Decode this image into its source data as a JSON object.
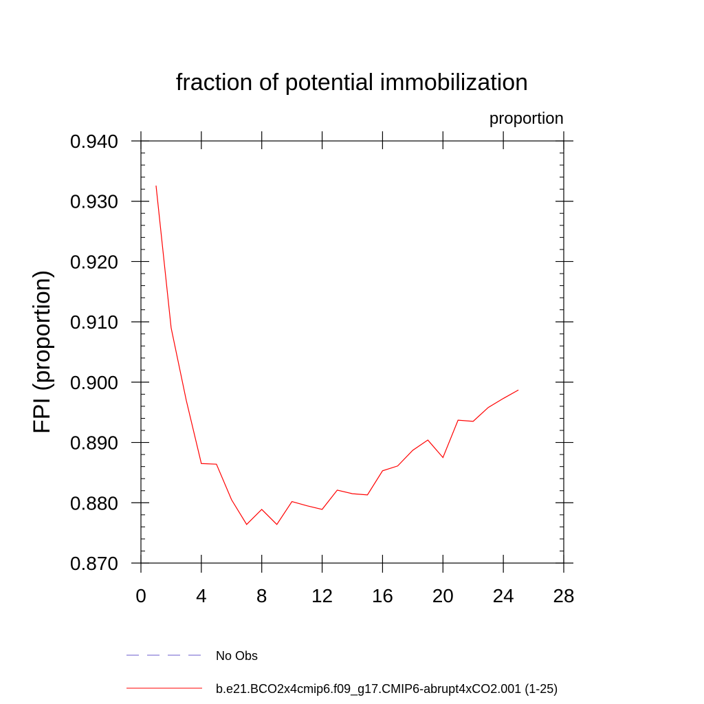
{
  "chart_data": {
    "type": "line",
    "title": "fraction of potential immobilization",
    "units_label": "proportion",
    "xlabel": "",
    "ylabel": "FPI  (proportion)",
    "xlim": [
      0,
      28
    ],
    "ylim": [
      0.87,
      0.94
    ],
    "x_ticks": [
      0,
      4,
      8,
      12,
      16,
      20,
      24,
      28
    ],
    "x_tick_labels": [
      "0",
      "4",
      "8",
      "12",
      "16",
      "20",
      "24",
      "28"
    ],
    "y_ticks": [
      0.87,
      0.88,
      0.89,
      0.9,
      0.91,
      0.92,
      0.93,
      0.94
    ],
    "y_tick_labels": [
      "0.870",
      "0.880",
      "0.890",
      "0.900",
      "0.910",
      "0.920",
      "0.930",
      "0.940"
    ],
    "grid": false,
    "legend_position": "bottom",
    "series": [
      {
        "name": "No Obs",
        "color": "#6a5acd",
        "dashed": true,
        "x": [],
        "values": []
      },
      {
        "name": "b.e21.BCO2x4cmip6.f09_g17.CMIP6-abrupt4xCO2.001 (1-25)",
        "color": "#ff0000",
        "dashed": false,
        "x": [
          1,
          2,
          3,
          4,
          5,
          6,
          7,
          8,
          9,
          10,
          11,
          12,
          13,
          14,
          15,
          16,
          17,
          18,
          19,
          20,
          21,
          22,
          23,
          24,
          25
        ],
        "values": [
          0.9326,
          0.909,
          0.897,
          0.8865,
          0.8864,
          0.8805,
          0.8764,
          0.8789,
          0.8764,
          0.8802,
          0.8795,
          0.8789,
          0.8821,
          0.8815,
          0.8813,
          0.8853,
          0.8861,
          0.8887,
          0.8904,
          0.8875,
          0.8937,
          0.8935,
          0.8958,
          0.8973,
          0.8987
        ]
      }
    ]
  }
}
